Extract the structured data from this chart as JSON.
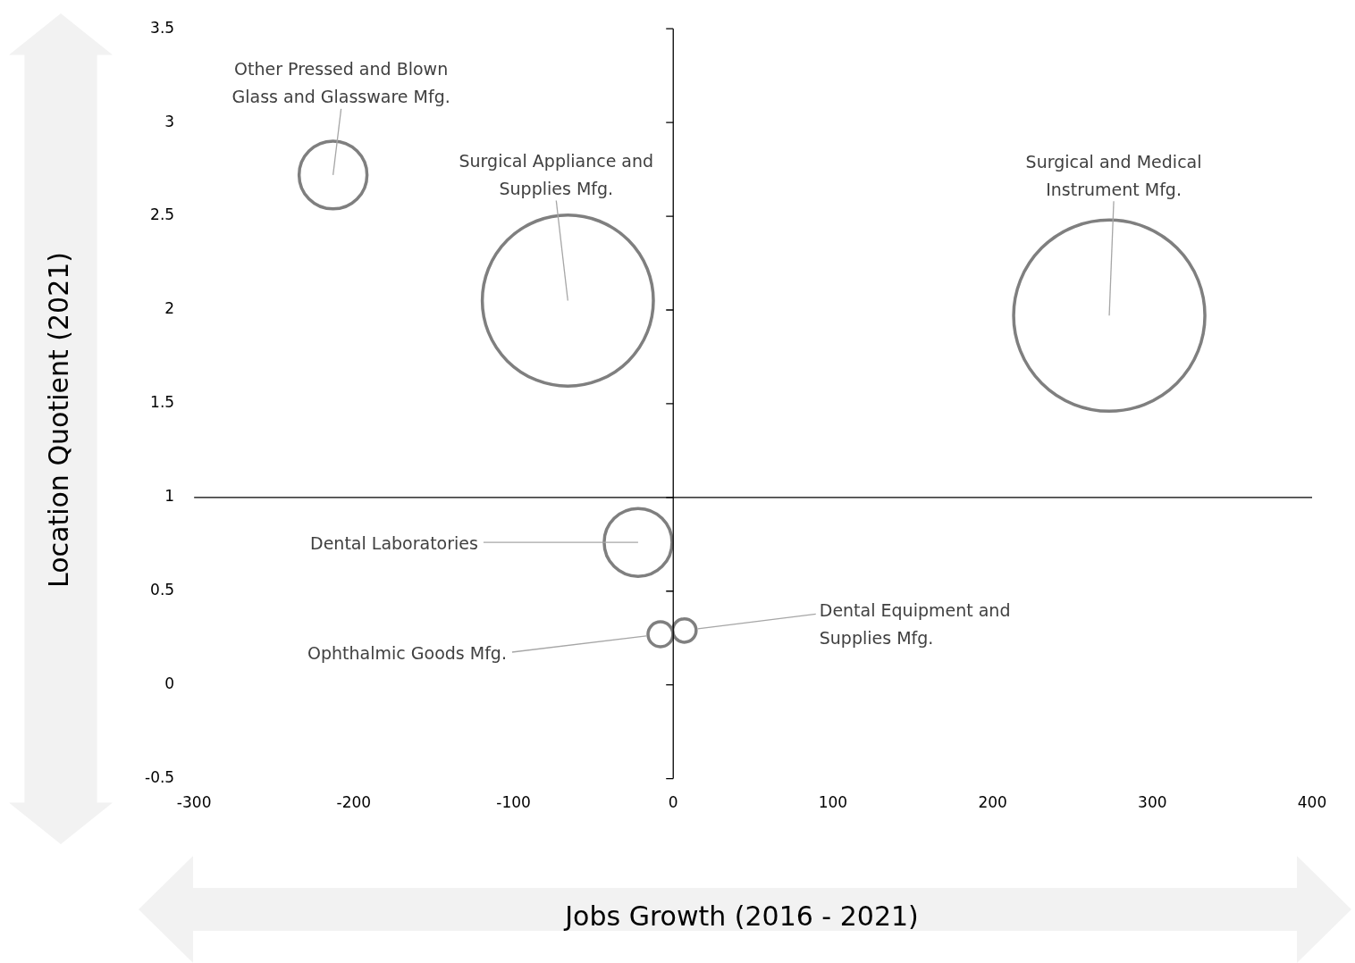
{
  "chart_data": {
    "type": "bubble",
    "xlabel": "Jobs Growth (2016 - 2021)",
    "ylabel": "Location Quotient (2021)",
    "series": [
      {
        "name": "Other Pressed and Blown Glass and Glassware Mfg.",
        "color": "#7f7f7f",
        "x": [
          -213
        ],
        "values": [
          2.72
        ],
        "sizes": [
          0.126
        ]
      },
      {
        "name": "Surgical Appliance and Supplies Mfg.",
        "color": "#7f7f7f",
        "x": [
          -66
        ],
        "values": [
          2.05
        ],
        "sizes": [
          0.8
        ]
      },
      {
        "name": "Surgical and Medical Instrument Mfg.",
        "color": "#7f7f7f",
        "x": [
          273
        ],
        "values": [
          1.97
        ],
        "sizes": [
          1
        ]
      },
      {
        "name": "Dental Laboratories",
        "color": "#7f7f7f",
        "x": [
          -22
        ],
        "values": [
          0.76
        ],
        "sizes": [
          0.126
        ]
      },
      {
        "name": "Ophthalmic Goods Mfg.",
        "color": "#7f7f7f",
        "x": [
          -8
        ],
        "values": [
          0.27
        ],
        "sizes": [
          0.017
        ]
      },
      {
        "name": "Dental Equipment and Supplies Mfg.",
        "color": "#7f7f7f",
        "x": [
          7
        ],
        "values": [
          0.29
        ],
        "sizes": [
          0.015
        ]
      }
    ],
    "xlim": [
      -300,
      400
    ],
    "xticks": [
      -300,
      -200,
      -100,
      0,
      100,
      200,
      300,
      400
    ],
    "ylim": [
      -0.5,
      3.5
    ],
    "yticks": [
      -0.5,
      0,
      0.5,
      1,
      1.5,
      2,
      2.5,
      3,
      3.5
    ],
    "ref_lines": [
      {
        "axis": "x",
        "value": 0,
        "color": "#000000"
      },
      {
        "axis": "y",
        "value": 1,
        "color": "#000000"
      }
    ],
    "grid": false,
    "legend": false
  }
}
